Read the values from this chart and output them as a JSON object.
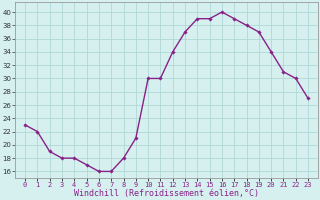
{
  "x": [
    0,
    1,
    2,
    3,
    4,
    5,
    6,
    7,
    8,
    9,
    10,
    11,
    12,
    13,
    14,
    15,
    16,
    17,
    18,
    19,
    20,
    21,
    22,
    23
  ],
  "y": [
    23,
    22,
    19,
    18,
    18,
    17,
    16,
    16,
    18,
    21,
    30,
    30,
    34,
    37,
    39,
    39,
    40,
    39,
    38,
    37,
    34,
    31,
    30,
    27
  ],
  "line_color": "#882288",
  "marker": "D",
  "marker_size": 1.8,
  "line_width": 1.0,
  "bg_color": "#d6f0f0",
  "grid_color": "#b0d8d8",
  "xlabel": "Windchill (Refroidissement éolien,°C)",
  "xlabel_fontsize": 6.0,
  "ylabel_ticks": [
    16,
    18,
    20,
    22,
    24,
    26,
    28,
    30,
    32,
    34,
    36,
    38,
    40
  ],
  "ylim": [
    15.0,
    41.5
  ],
  "xlim": [
    -0.8,
    23.8
  ],
  "xtick_labels": [
    "0",
    "1",
    "2",
    "3",
    "4",
    "5",
    "6",
    "7",
    "8",
    "9",
    "10",
    "11",
    "12",
    "13",
    "14",
    "15",
    "16",
    "17",
    "18",
    "19",
    "20",
    "21",
    "22",
    "23"
  ],
  "tick_fontsize": 5.0,
  "spine_color": "#999999"
}
